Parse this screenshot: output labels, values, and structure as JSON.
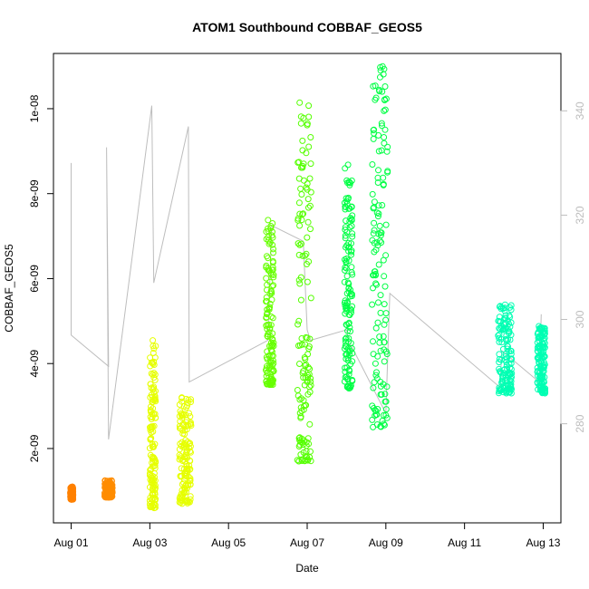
{
  "chart_data": {
    "type": "scatter",
    "title": "ATOM1 Southbound COBBAF_GEOS5",
    "xlabel": "Date",
    "ylabel": "COBBAF_GEOS5",
    "x_ticks": [
      "Aug 01",
      "Aug 03",
      "Aug 05",
      "Aug 07",
      "Aug 09",
      "Aug 11",
      "Aug 13"
    ],
    "x_tick_values": [
      0,
      2,
      4,
      6,
      8,
      10,
      12
    ],
    "y_ticks": [
      "2e-09",
      "4e-09",
      "6e-09",
      "8e-09",
      "1e-08"
    ],
    "y_tick_values": [
      2e-09,
      4e-09,
      6e-09,
      8e-09,
      1e-08
    ],
    "y2_ticks": [
      "280",
      "300",
      "320",
      "340"
    ],
    "y2_tick_values": [
      280,
      300,
      320,
      340
    ],
    "xlim": [
      -0.45,
      12.45
    ],
    "ylim": [
      2.5e-10,
      1.13e-08
    ],
    "y2lim": [
      261,
      351
    ],
    "colors": {
      "axis": "#000000",
      "secondary_axis": "#bdbdbd",
      "secondary_line": "#bdbdbd"
    },
    "series": [
      {
        "color": "#ff8000",
        "x_range": [
          -0.02,
          0.05
        ],
        "y_range": [
          8e-10,
          1.1e-09
        ]
      },
      {
        "color": "#ff8c00",
        "x_range": [
          0.85,
          1.05
        ],
        "y_range": [
          8.5e-10,
          1.25e-09
        ]
      },
      {
        "color": "#e6ff00",
        "x_range": [
          2.0,
          2.15
        ],
        "y_range": [
          6e-10,
          4.6e-09
        ]
      },
      {
        "color": "#e6ff00",
        "x_range": [
          2.75,
          3.05
        ],
        "y_range": [
          7e-10,
          3.3e-09
        ]
      },
      {
        "color": "#66ff00",
        "x_range": [
          4.95,
          5.15
        ],
        "y_range": [
          3.5e-09,
          7.4e-09
        ]
      },
      {
        "color": "#55ff00",
        "x_range": [
          5.75,
          6.1
        ],
        "y_range": [
          1.7e-09,
          1.02e-08
        ]
      },
      {
        "color": "#00ff44",
        "x_range": [
          6.95,
          7.15
        ],
        "y_range": [
          3.4e-09,
          8.7e-09
        ]
      },
      {
        "color": "#00ff44",
        "x_range": [
          7.65,
          8.05
        ],
        "y_range": [
          2.5e-09,
          1.1e-08
        ]
      },
      {
        "color": "#00ffb3",
        "x_range": [
          10.85,
          11.2
        ],
        "y_range": [
          3.3e-09,
          5.4e-09
        ]
      },
      {
        "color": "#00ffb3",
        "x_range": [
          11.85,
          12.05
        ],
        "y_range": [
          3.3e-09,
          4.9e-09
        ]
      }
    ],
    "secondary_series": {
      "name": "",
      "color": "#bdbdbd",
      "x": [
        0,
        0,
        0.95,
        0.9,
        0.95,
        2.05,
        2.1,
        2.98,
        3.0,
        5.0,
        5.1,
        5.9,
        6.0,
        6.08,
        7.0,
        7.05,
        8.0,
        8.1,
        10.9,
        10.95,
        11.9,
        11.95
      ],
      "y": [
        330,
        297,
        291,
        333,
        277,
        341,
        307,
        337,
        288,
        296,
        318,
        315,
        298,
        296,
        298,
        296,
        282,
        305,
        287,
        294,
        288,
        301
      ]
    },
    "grid": false
  }
}
